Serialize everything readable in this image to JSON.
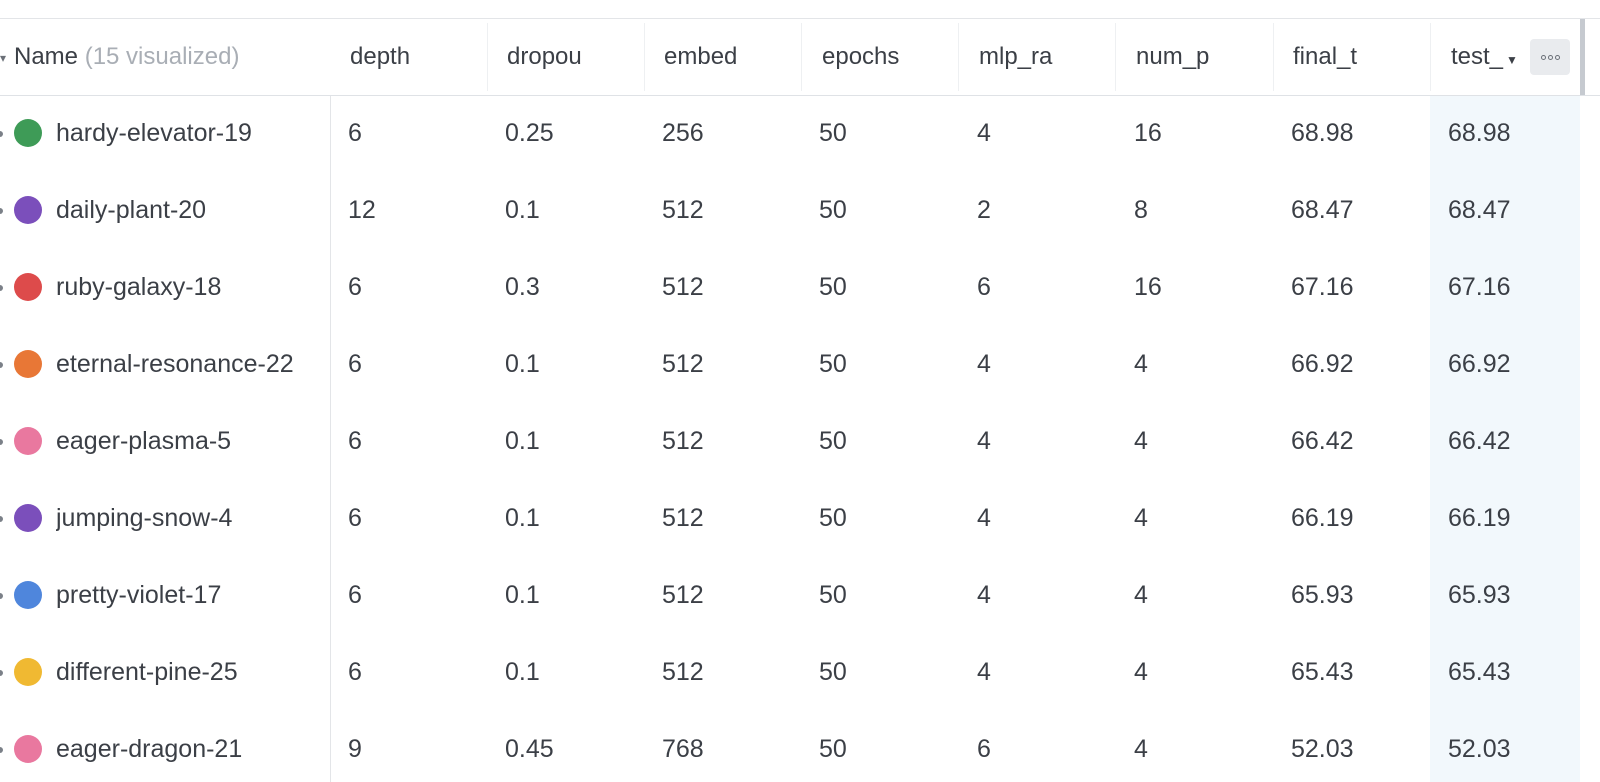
{
  "table": {
    "name_header": {
      "label": "Name",
      "suffix": "(15 visualized)"
    },
    "columns": [
      {
        "label": "depth"
      },
      {
        "label": "dropou"
      },
      {
        "label": "embed"
      },
      {
        "label": "epochs"
      },
      {
        "label": "mlp_ra"
      },
      {
        "label": "num_p"
      },
      {
        "label": "final_t"
      },
      {
        "label": "test_"
      }
    ],
    "rows": [
      {
        "name": "hardy-elevator-19",
        "color": "#3e9b57",
        "values": [
          "6",
          "0.25",
          "256",
          "50",
          "4",
          "16",
          "68.98",
          "68.98"
        ]
      },
      {
        "name": "daily-plant-20",
        "color": "#7b4fbb",
        "values": [
          "12",
          "0.1",
          "512",
          "50",
          "2",
          "8",
          "68.47",
          "68.47"
        ]
      },
      {
        "name": "ruby-galaxy-18",
        "color": "#dd4b4b",
        "values": [
          "6",
          "0.3",
          "512",
          "50",
          "6",
          "16",
          "67.16",
          "67.16"
        ]
      },
      {
        "name": "eternal-resonance-22",
        "color": "#e87736",
        "values": [
          "6",
          "0.1",
          "512",
          "50",
          "4",
          "4",
          "66.92",
          "66.92"
        ]
      },
      {
        "name": "eager-plasma-5",
        "color": "#e9789f",
        "values": [
          "6",
          "0.1",
          "512",
          "50",
          "4",
          "4",
          "66.42",
          "66.42"
        ]
      },
      {
        "name": "jumping-snow-4",
        "color": "#7b4fbb",
        "values": [
          "6",
          "0.1",
          "512",
          "50",
          "4",
          "4",
          "66.19",
          "66.19"
        ]
      },
      {
        "name": "pretty-violet-17",
        "color": "#4f86dc",
        "values": [
          "6",
          "0.1",
          "512",
          "50",
          "4",
          "4",
          "65.93",
          "65.93"
        ]
      },
      {
        "name": "different-pine-25",
        "color": "#f0b932",
        "values": [
          "6",
          "0.1",
          "512",
          "50",
          "4",
          "4",
          "65.43",
          "65.43"
        ]
      },
      {
        "name": "eager-dragon-21",
        "color": "#e9789f",
        "values": [
          "9",
          "0.45",
          "768",
          "50",
          "6",
          "4",
          "52.03",
          "52.03"
        ]
      }
    ],
    "highlight_color": "#f2f8fc",
    "icons": {
      "sort": "sort-down-icon",
      "menu": "more-options-icon"
    }
  }
}
